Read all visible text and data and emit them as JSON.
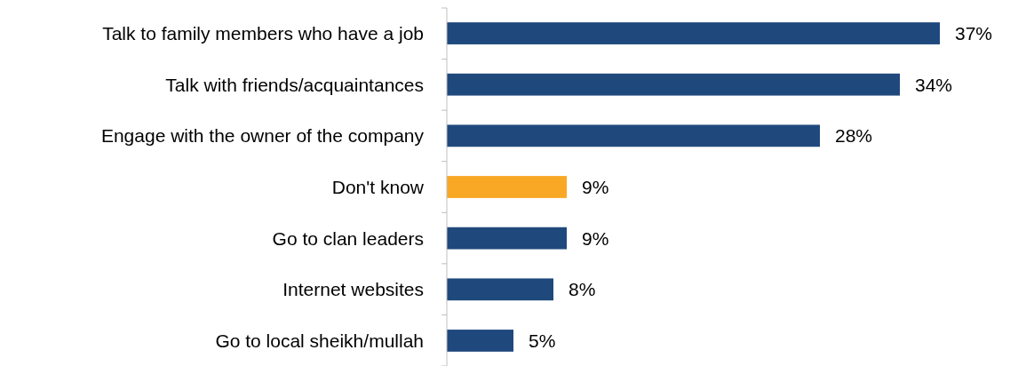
{
  "chart_data": {
    "type": "bar",
    "orientation": "horizontal",
    "categories": [
      "Talk to family members who have a job",
      "Talk with friends/acquaintances",
      "Engage with the owner of the company",
      "Don't know",
      "Go to clan leaders",
      "Internet websites",
      "Go to local sheikh/mullah"
    ],
    "values": [
      37,
      34,
      28,
      9,
      9,
      8,
      5
    ],
    "colors": [
      "#1f497d",
      "#1f497d",
      "#1f497d",
      "#f9a825",
      "#1f497d",
      "#1f497d",
      "#1f497d"
    ],
    "value_labels": [
      "37%",
      "34%",
      "28%",
      "9%",
      "9%",
      "8%",
      "5%"
    ]
  }
}
